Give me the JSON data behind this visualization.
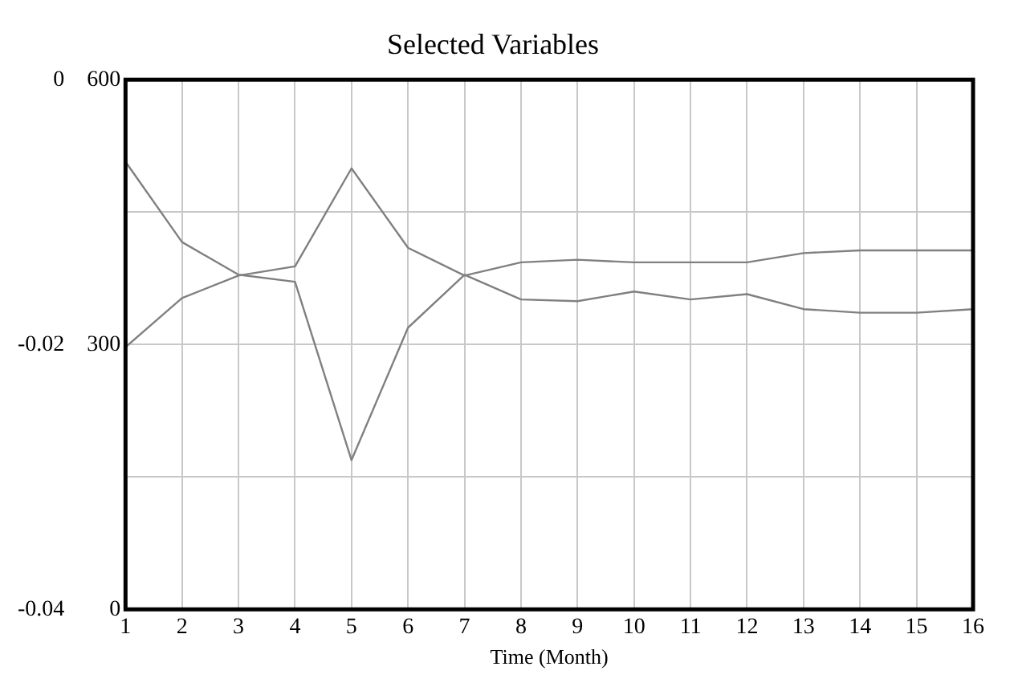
{
  "chart_data": {
    "type": "line",
    "title": "Selected Variables",
    "xlabel": "Time (Month)",
    "x": [
      1,
      2,
      3,
      4,
      5,
      6,
      7,
      8,
      9,
      10,
      11,
      12,
      13,
      14,
      15,
      16
    ],
    "xlim": [
      1,
      16
    ],
    "xticks": [
      1,
      2,
      3,
      4,
      5,
      6,
      7,
      8,
      9,
      10,
      11,
      12,
      13,
      14,
      15,
      16
    ],
    "ylim": [
      0,
      600
    ],
    "yticks": [
      0,
      {
        "value": 150,
        "label": null
      },
      300,
      {
        "value": 450,
        "label": null
      },
      600
    ],
    "y2lim": [
      -0.04,
      0
    ],
    "y2ticks": [
      -0.04,
      -0.02,
      0
    ],
    "series": [
      {
        "color": "#808080",
        "values": [
          507,
          416,
          379,
          371,
          169,
          319,
          379,
          351,
          349,
          360,
          351,
          357,
          340,
          336,
          336,
          340
        ]
      },
      {
        "color": "#808080",
        "axis": "y2",
        "values": [
          -0.0202,
          -0.0165,
          -0.0148,
          -0.0141,
          -0.0067,
          -0.0127,
          -0.0148,
          -0.0138,
          -0.0136,
          -0.0138,
          -0.0138,
          -0.0138,
          -0.0131,
          -0.0129,
          -0.0129,
          -0.0129
        ]
      }
    ],
    "grid": true,
    "legend": false,
    "marker": "none",
    "line_style": "solid"
  }
}
